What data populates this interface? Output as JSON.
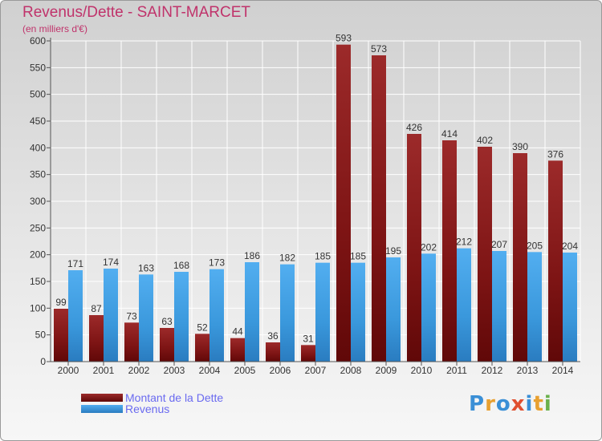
{
  "header": {
    "title": "Revenus/Dette - SAINT-MARCET",
    "subtitle": "(en milliers d'€)"
  },
  "colors": {
    "dette": "#8b1a1a",
    "revenus": "#3a98dc",
    "title": "#c0336b",
    "legend_text": "#6a6af0"
  },
  "chart_data": {
    "type": "bar",
    "title": "Revenus/Dette - SAINT-MARCET",
    "subtitle": "(en milliers d'€)",
    "categories": [
      "2000",
      "2001",
      "2002",
      "2003",
      "2004",
      "2005",
      "2006",
      "2007",
      "2008",
      "2009",
      "2010",
      "2011",
      "2012",
      "2013",
      "2014"
    ],
    "series": [
      {
        "name": "Montant de la Dette",
        "values": [
          99,
          87,
          73,
          63,
          52,
          44,
          36,
          31,
          593,
          573,
          426,
          414,
          402,
          390,
          376
        ]
      },
      {
        "name": "Revenus",
        "values": [
          171,
          174,
          163,
          168,
          173,
          186,
          182,
          185,
          185,
          195,
          202,
          212,
          207,
          205,
          204
        ]
      }
    ],
    "ylim": [
      0,
      600
    ],
    "yticks": [
      0,
      50,
      100,
      150,
      200,
      250,
      300,
      350,
      400,
      450,
      500,
      550,
      600
    ],
    "grid": true,
    "legend_position": "bottom-left"
  },
  "logo": {
    "text": "Proxiti",
    "letters": [
      {
        "ch": "P",
        "color": "#3a8fd6"
      },
      {
        "ch": "r",
        "color": "#e8a030"
      },
      {
        "ch": "o",
        "color": "#3a8fd6"
      },
      {
        "ch": "x",
        "color": "#e05030"
      },
      {
        "ch": "i",
        "color": "#3a8fd6"
      },
      {
        "ch": "t",
        "color": "#e8a030"
      },
      {
        "ch": "i",
        "color": "#6ab04c"
      }
    ]
  }
}
